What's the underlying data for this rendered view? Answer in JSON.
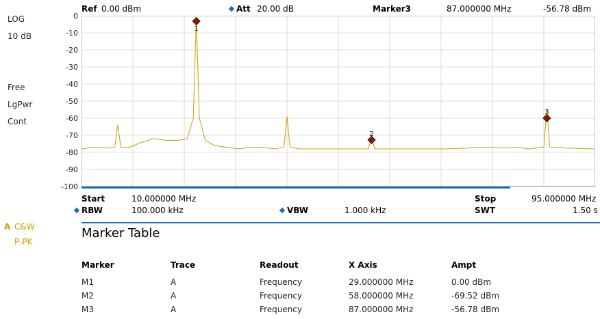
{
  "header": {
    "ref_label": "Ref",
    "ref_value": "0.00 dBm",
    "att_label": "Att",
    "att_value": "20.00 dB",
    "marker_label": "Marker3",
    "marker_freq": "87.000000 MHz",
    "marker_ampt": "-56.78 dBm"
  },
  "left_panel": {
    "scale_type": "LOG",
    "scale_div": "10 dB",
    "trigger": "Free",
    "detector": "LgPwr",
    "sweep_mode": "Cont",
    "trace_id": "A",
    "trace_mode": "C&W",
    "trace_detector": "P-PK"
  },
  "footer": {
    "start_label": "Start",
    "start_value": "10.000000 MHz",
    "stop_label": "Stop",
    "stop_value": "95.000000 MHz",
    "rbw_label": "RBW",
    "rbw_value": "100.000 kHz",
    "vbw_label": "VBW",
    "vbw_value": "1.000 kHz",
    "swt_label": "SWT",
    "swt_value": "1.50 s"
  },
  "marker_table": {
    "title": "Marker Table",
    "headers": [
      "Marker",
      "Trace",
      "Readout",
      "X Axis",
      "Ampt"
    ],
    "rows": [
      [
        "M1",
        "A",
        "Frequency",
        "29.000000 MHz",
        "0.00 dBm"
      ],
      [
        "M2",
        "A",
        "Frequency",
        "58.000000 MHz",
        "-69.52 dBm"
      ],
      [
        "M3",
        "A",
        "Frequency",
        "87.000000 MHz",
        "-56.78 dBm"
      ]
    ]
  },
  "colors": {
    "trace": "#c9a000",
    "marker": "#8b1a00",
    "accent": "#1b6db5",
    "grid": "#bfbfbf"
  },
  "chart_data": {
    "type": "line",
    "xlim": [
      10,
      95
    ],
    "ylim": [
      -100,
      0
    ],
    "yticks": [
      "0",
      "-10",
      "-20",
      "-30",
      "-40",
      "-50",
      "-60",
      "-70",
      "-80",
      "-90",
      "-100"
    ],
    "grid": true,
    "series": [
      {
        "x": [
          10,
          12,
          14,
          15.5,
          16,
          16.5,
          18,
          20,
          22,
          24,
          26,
          27.5,
          28.5,
          29,
          29.5,
          30.5,
          32,
          34,
          36,
          38,
          40,
          42,
          43.5,
          44,
          44.5,
          46,
          50,
          54,
          57.5,
          58,
          58.5,
          62,
          66,
          70,
          74,
          77,
          80,
          82,
          84,
          86.5,
          87,
          87.5,
          90,
          95
        ],
        "y": [
          -78,
          -77,
          -77.5,
          -77,
          -64,
          -77,
          -77,
          -74,
          -72,
          -73,
          -73,
          -72,
          -60,
          -1,
          -60,
          -73,
          -76,
          -77,
          -78,
          -77,
          -77,
          -78,
          -77,
          -59,
          -77,
          -78,
          -78,
          -78,
          -78,
          -70,
          -78,
          -78,
          -78,
          -78,
          -77.5,
          -77,
          -77.5,
          -77,
          -78,
          -77,
          -55,
          -77,
          -77.5,
          -78
        ]
      }
    ],
    "markers": [
      {
        "label": "1",
        "x": 29,
        "y": 0.0
      },
      {
        "label": "2",
        "x": 58,
        "y": -69.52
      },
      {
        "label": "3",
        "x": 87,
        "y": -56.78
      }
    ]
  }
}
